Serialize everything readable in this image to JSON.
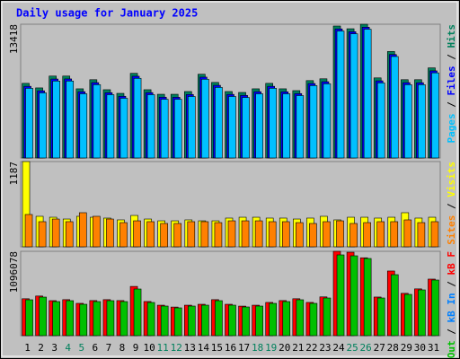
{
  "title": "Daily usage for January 2025",
  "x_axis": {
    "categories": [
      "1",
      "2",
      "3",
      "4",
      "5",
      "6",
      "7",
      "8",
      "9",
      "10",
      "11",
      "12",
      "13",
      "14",
      "15",
      "16",
      "17",
      "18",
      "19",
      "20",
      "21",
      "22",
      "23",
      "24",
      "25",
      "26",
      "27",
      "28",
      "29",
      "30",
      "31"
    ],
    "colors": [
      "#000000",
      "#000000",
      "#000000",
      "#00805c",
      "#00805c",
      "#000000",
      "#000000",
      "#000000",
      "#000000",
      "#000000",
      "#00805c",
      "#00805c",
      "#000000",
      "#000000",
      "#000000",
      "#000000",
      "#000000",
      "#00805c",
      "#00805c",
      "#000000",
      "#000000",
      "#000000",
      "#000000",
      "#000000",
      "#00805c",
      "#00805c",
      "#000000",
      "#000000",
      "#000000",
      "#000000",
      "#000000"
    ]
  },
  "chart_data": [
    {
      "type": "bar",
      "ylim": [
        0,
        13418
      ],
      "yticks": [
        13418
      ],
      "legend_separator": " / ",
      "series": [
        {
          "name": "Hits",
          "color": "#00805c",
          "values": [
            7487,
            7030,
            8217,
            8217,
            6939,
            7852,
            6848,
            6482,
            8491,
            6848,
            6391,
            6391,
            6665,
            8400,
            7578,
            6665,
            6574,
            6939,
            7487,
            6939,
            6756,
            7761,
            7943,
            13239,
            12965,
            13418,
            8034,
            10682,
            7852,
            7852,
            9039
          ]
        },
        {
          "name": "Files",
          "color": "#0000ff",
          "values": [
            7190,
            6740,
            7920,
            7930,
            6650,
            7560,
            6550,
            6190,
            8200,
            6560,
            6100,
            6090,
            6370,
            8110,
            7290,
            6380,
            6280,
            6650,
            7190,
            6640,
            6460,
            7470,
            7650,
            12950,
            12670,
            13120,
            7740,
            10380,
            7560,
            7550,
            8740
          ]
        },
        {
          "name": "Pages",
          "color": "#00c0ff",
          "values": [
            6990,
            6530,
            7720,
            7720,
            6440,
            7350,
            6350,
            5990,
            7990,
            6350,
            5890,
            5890,
            6170,
            7900,
            7080,
            6170,
            6070,
            6440,
            6990,
            6440,
            6260,
            7260,
            7440,
            12740,
            12460,
            12920,
            7530,
            10180,
            7350,
            7350,
            8540
          ]
        }
      ]
    },
    {
      "type": "bar",
      "ylim": [
        0,
        1187
      ],
      "yticks": [
        1187
      ],
      "legend_separator": " / ",
      "series": [
        {
          "name": "Visits",
          "color": "#ffff00",
          "values": [
            1187,
            425,
            412,
            387,
            425,
            412,
            400,
            375,
            437,
            387,
            362,
            362,
            375,
            362,
            362,
            400,
            412,
            412,
            400,
            400,
            387,
            400,
            425,
            375,
            412,
            412,
            400,
            412,
            475,
            400,
            412
          ]
        },
        {
          "name": "Sites",
          "color": "#ff8000",
          "values": [
            450,
            350,
            387,
            350,
            475,
            425,
            387,
            337,
            362,
            350,
            325,
            325,
            350,
            350,
            337,
            362,
            362,
            362,
            350,
            350,
            337,
            325,
            350,
            362,
            325,
            337,
            350,
            350,
            375,
            337,
            350
          ]
        }
      ]
    },
    {
      "type": "bar",
      "ylim": [
        0,
        1096078
      ],
      "yticks": [
        1096078
      ],
      "legend_separator": " / ",
      "series": [
        {
          "name": "kB F",
          "color": "#ff0000",
          "values": [
            480000,
            515000,
            455000,
            468000,
            420000,
            456000,
            468000,
            456000,
            640000,
            444000,
            396000,
            372000,
            396000,
            408000,
            468000,
            408000,
            384000,
            396000,
            432000,
            456000,
            480000,
            432000,
            504000,
            1096078,
            1084000,
            1012000,
            502000,
            840000,
            550000,
            608000,
            735000
          ]
        },
        {
          "name": "kB In",
          "color": "#0080ff",
          "values": [
            0,
            0,
            0,
            0,
            0,
            0,
            0,
            0,
            0,
            0,
            0,
            0,
            0,
            0,
            0,
            0,
            0,
            0,
            0,
            0,
            0,
            0,
            0,
            0,
            0,
            0,
            0,
            0,
            0,
            0,
            0
          ]
        },
        {
          "name": "kB Out",
          "color": "#00c000",
          "values": [
            466400,
            501380,
            443080,
            454740,
            408100,
            443080,
            454740,
            443080,
            606320,
            431420,
            384780,
            361460,
            384780,
            396440,
            454740,
            396440,
            373120,
            384780,
            419760,
            443080,
            466400,
            419760,
            489720,
            1049400,
            1037740,
            1002760,
            489720,
            792880,
            536360,
            594660,
            722920
          ]
        }
      ]
    }
  ]
}
